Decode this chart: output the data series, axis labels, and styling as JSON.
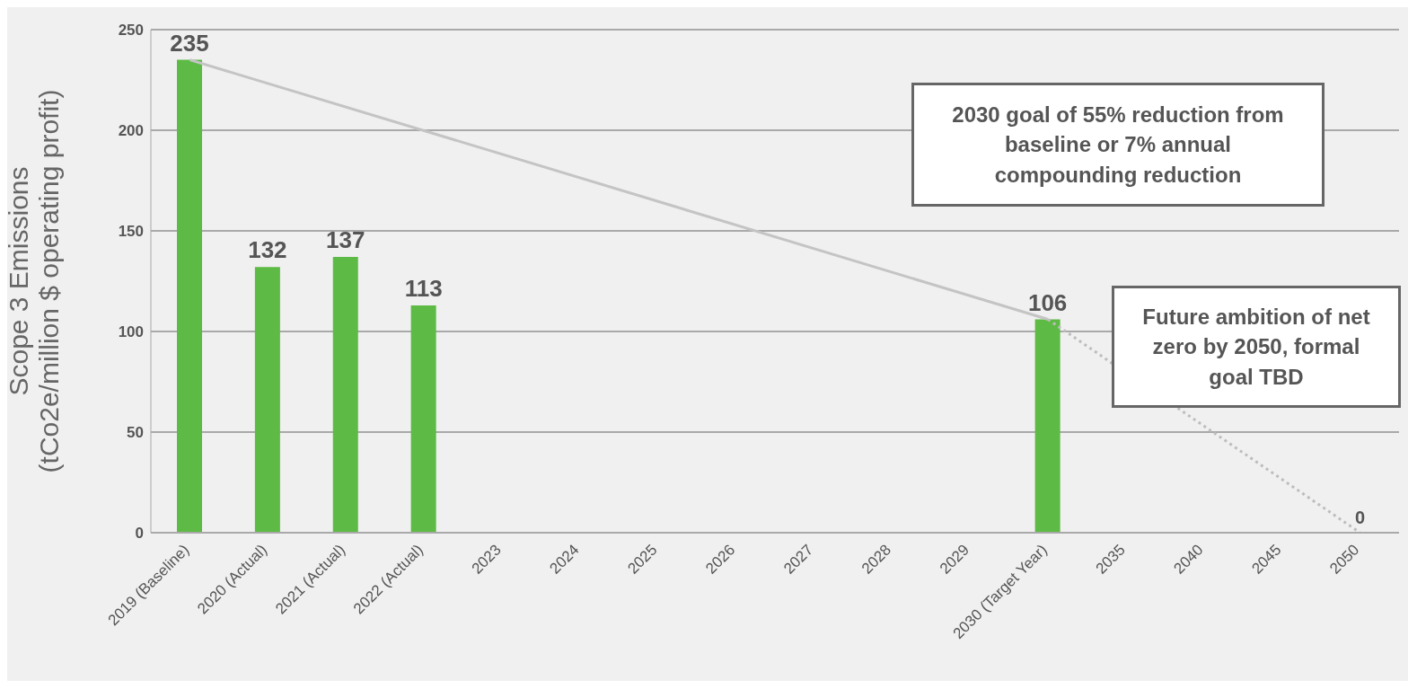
{
  "chart_data": {
    "type": "bar",
    "ylabel": "Scope 3 Emissions\n(tCo2e/million $ operating profit)",
    "categories": [
      "2019 (Baseline)",
      "2020 (Actual)",
      "2021 (Actual)",
      "2022 (Actual)",
      "2023",
      "2024",
      "2025",
      "2026",
      "2027",
      "2028",
      "2029",
      "2030 (Target Year)",
      "2035",
      "2040",
      "2045",
      "2050"
    ],
    "series": [
      {
        "color": "#5dba45",
        "values": [
          235,
          132,
          137,
          113,
          null,
          null,
          null,
          null,
          null,
          null,
          null,
          106,
          null,
          null,
          null,
          null
        ],
        "value_labels": [
          "235",
          "132",
          "137",
          "113",
          null,
          null,
          null,
          null,
          null,
          null,
          null,
          "106",
          null,
          null,
          null,
          null
        ]
      },
      {
        "type": "line",
        "color": "#c4c4c4",
        "line_style": "solid",
        "values": [
          235,
          null,
          null,
          null,
          null,
          null,
          null,
          null,
          null,
          null,
          null,
          106,
          null,
          null,
          null,
          null
        ]
      },
      {
        "type": "line",
        "color": "#bdbdbd",
        "line_style": "dotted",
        "values": [
          null,
          null,
          null,
          null,
          null,
          null,
          null,
          null,
          null,
          null,
          null,
          106,
          null,
          null,
          null,
          0
        ],
        "value_labels": [
          null,
          null,
          null,
          null,
          null,
          null,
          null,
          null,
          null,
          null,
          null,
          null,
          null,
          null,
          null,
          "0"
        ]
      }
    ],
    "ylim": [
      0,
      250
    ],
    "yticks": [
      0,
      50,
      100,
      150,
      200,
      250
    ],
    "grid": "y",
    "annotations": [
      "2030 goal of 55% reduction from baseline or 7% annual compounding reduction",
      "Future ambition of net zero by 2050, formal goal TBD"
    ]
  }
}
